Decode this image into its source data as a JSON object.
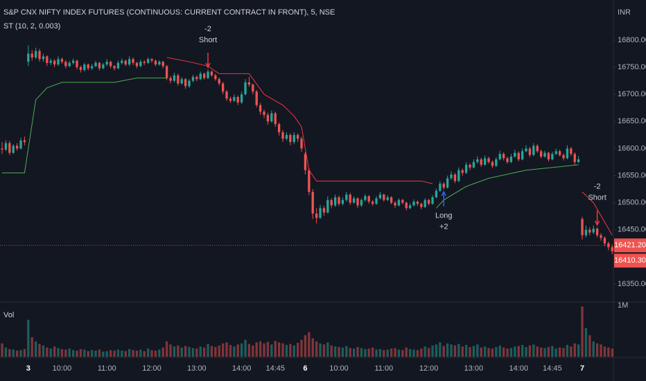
{
  "chart_data": {
    "type": "candlestick",
    "title": "S&P CNX NIFTY INDEX FUTURES (CONTINUOUS: CURRENT CONTRACT IN FRONT), 5, NSE",
    "subtitle": "ST (10, 2, 0.003)",
    "currency": "INR",
    "up_color": "#26a69a",
    "down_color": "#ef5350",
    "xlim": [
      -0.56,
      163.33
    ],
    "ylim": [
      16318,
      16874
    ],
    "yticks": [
      {
        "value": 16350,
        "label": "16350.00"
      },
      {
        "value": 16400,
        "label": "16400.00"
      },
      {
        "value": 16450,
        "label": "16450.00"
      },
      {
        "value": 16500,
        "label": "16500.00"
      },
      {
        "value": 16550,
        "label": "16550.00"
      },
      {
        "value": 16600,
        "label": "16600.00"
      },
      {
        "value": 16650,
        "label": "16650.00"
      },
      {
        "value": 16700,
        "label": "16700.00"
      },
      {
        "value": 16750,
        "label": "16750.00"
      },
      {
        "value": 16800,
        "label": "16800.00"
      }
    ],
    "xticks": [
      {
        "value": 7,
        "label": "3"
      },
      {
        "value": 16,
        "label": "10:00"
      },
      {
        "value": 28,
        "label": "11:00"
      },
      {
        "value": 40,
        "label": "12:00"
      },
      {
        "value": 52,
        "label": "13:00"
      },
      {
        "value": 64,
        "label": "14:00"
      },
      {
        "value": 73,
        "label": "14:45"
      },
      {
        "value": 81,
        "label": "6"
      },
      {
        "value": 90,
        "label": "10:00"
      },
      {
        "value": 102,
        "label": "11:00"
      },
      {
        "value": 114,
        "label": "12:00"
      },
      {
        "value": 126,
        "label": "13:00"
      },
      {
        "value": 138,
        "label": "14:00"
      },
      {
        "value": 147,
        "label": "14:45"
      },
      {
        "value": 155,
        "label": "7"
      }
    ],
    "price_marks": [
      {
        "value": 16421.2,
        "label": "16421.20",
        "color": "#ef5350"
      },
      {
        "value": 16410.3,
        "label": "16410.30",
        "color": "#ef5350"
      }
    ],
    "candles": [
      [
        16600,
        16612,
        16590,
        16598
      ],
      [
        16598,
        16615,
        16595,
        16610
      ],
      [
        16610,
        16614,
        16588,
        16592
      ],
      [
        16592,
        16608,
        16590,
        16605
      ],
      [
        16605,
        16610,
        16596,
        16600
      ],
      [
        16600,
        16620,
        16598,
        16615
      ],
      [
        16615,
        16622,
        16606,
        16612
      ],
      [
        16760,
        16790,
        16752,
        16775
      ],
      [
        16775,
        16782,
        16762,
        16768
      ],
      [
        16768,
        16786,
        16765,
        16780
      ],
      [
        16780,
        16784,
        16760,
        16765
      ],
      [
        16765,
        16775,
        16760,
        16770
      ],
      [
        16770,
        16772,
        16752,
        16758
      ],
      [
        16758,
        16766,
        16754,
        16762
      ],
      [
        16762,
        16765,
        16750,
        16755
      ],
      [
        16755,
        16770,
        16752,
        16765
      ],
      [
        16765,
        16768,
        16756,
        16760
      ],
      [
        16760,
        16763,
        16748,
        16752
      ],
      [
        16752,
        16762,
        16750,
        16758
      ],
      [
        16758,
        16766,
        16755,
        16762
      ],
      [
        16762,
        16764,
        16746,
        16750
      ],
      [
        16750,
        16753,
        16740,
        16745
      ],
      [
        16745,
        16758,
        16742,
        16755
      ],
      [
        16755,
        16757,
        16744,
        16748
      ],
      [
        16748,
        16756,
        16745,
        16752
      ],
      [
        16752,
        16762,
        16750,
        16758
      ],
      [
        16758,
        16760,
        16744,
        16748
      ],
      [
        16748,
        16758,
        16746,
        16755
      ],
      [
        16755,
        16765,
        16752,
        16760
      ],
      [
        16760,
        16762,
        16748,
        16752
      ],
      [
        16752,
        16754,
        16744,
        16748
      ],
      [
        16748,
        16762,
        16746,
        16758
      ],
      [
        16758,
        16766,
        16755,
        16762
      ],
      [
        16762,
        16764,
        16752,
        16755
      ],
      [
        16755,
        16770,
        16752,
        16765
      ],
      [
        16765,
        16768,
        16754,
        16758
      ],
      [
        16758,
        16760,
        16748,
        16752
      ],
      [
        16752,
        16764,
        16750,
        16760
      ],
      [
        16760,
        16763,
        16754,
        16758
      ],
      [
        16758,
        16768,
        16756,
        16765
      ],
      [
        16765,
        16767,
        16758,
        16762
      ],
      [
        16762,
        16764,
        16752,
        16755
      ],
      [
        16755,
        16763,
        16753,
        16760
      ],
      [
        16760,
        16762,
        16748,
        16752
      ],
      [
        16752,
        16754,
        16726,
        16730
      ],
      [
        16730,
        16734,
        16720,
        16725
      ],
      [
        16725,
        16740,
        16722,
        16735
      ],
      [
        16735,
        16738,
        16716,
        16720
      ],
      [
        16720,
        16732,
        16718,
        16728
      ],
      [
        16728,
        16730,
        16710,
        16715
      ],
      [
        16715,
        16728,
        16712,
        16725
      ],
      [
        16725,
        16736,
        16722,
        16732
      ],
      [
        16732,
        16735,
        16724,
        16728
      ],
      [
        16728,
        16742,
        16726,
        16738
      ],
      [
        16738,
        16740,
        16727,
        16730
      ],
      [
        16730,
        16746,
        16728,
        16742
      ],
      [
        16742,
        16744,
        16732,
        16735
      ],
      [
        16735,
        16738,
        16725,
        16728
      ],
      [
        16728,
        16731,
        16716,
        16720
      ],
      [
        16720,
        16723,
        16700,
        16705
      ],
      [
        16705,
        16708,
        16688,
        16692
      ],
      [
        16692,
        16696,
        16684,
        16688
      ],
      [
        16688,
        16700,
        16686,
        16695
      ],
      [
        16695,
        16698,
        16680,
        16685
      ],
      [
        16685,
        16705,
        16682,
        16700
      ],
      [
        16700,
        16728,
        16698,
        16722
      ],
      [
        16722,
        16732,
        16714,
        16718
      ],
      [
        16718,
        16720,
        16700,
        16705
      ],
      [
        16705,
        16708,
        16676,
        16680
      ],
      [
        16680,
        16684,
        16662,
        16668
      ],
      [
        16668,
        16672,
        16656,
        16662
      ],
      [
        16662,
        16666,
        16644,
        16650
      ],
      [
        16650,
        16670,
        16648,
        16665
      ],
      [
        16665,
        16668,
        16640,
        16645
      ],
      [
        16645,
        16648,
        16624,
        16630
      ],
      [
        16630,
        16634,
        16612,
        16618
      ],
      [
        16618,
        16630,
        16615,
        16625
      ],
      [
        16625,
        16628,
        16606,
        16612
      ],
      [
        16612,
        16630,
        16608,
        16625
      ],
      [
        16625,
        16628,
        16612,
        16618
      ],
      [
        16618,
        16622,
        16594,
        16600
      ],
      [
        16590,
        16594,
        16552,
        16560
      ],
      [
        16560,
        16564,
        16514,
        16520
      ],
      [
        16520,
        16525,
        16470,
        16480
      ],
      [
        16480,
        16490,
        16462,
        16472
      ],
      [
        16472,
        16496,
        16470,
        16490
      ],
      [
        16490,
        16494,
        16476,
        16482
      ],
      [
        16482,
        16512,
        16480,
        16505
      ],
      [
        16505,
        16508,
        16490,
        16495
      ],
      [
        16495,
        16515,
        16492,
        16510
      ],
      [
        16510,
        16513,
        16494,
        16498
      ],
      [
        16498,
        16510,
        16495,
        16505
      ],
      [
        16505,
        16520,
        16502,
        16515
      ],
      [
        16515,
        16518,
        16496,
        16500
      ],
      [
        16500,
        16512,
        16498,
        16508
      ],
      [
        16508,
        16510,
        16490,
        16495
      ],
      [
        16495,
        16508,
        16492,
        16505
      ],
      [
        16505,
        16516,
        16502,
        16512
      ],
      [
        16512,
        16514,
        16498,
        16502
      ],
      [
        16502,
        16505,
        16494,
        16498
      ],
      [
        16498,
        16512,
        16496,
        16508
      ],
      [
        16508,
        16520,
        16506,
        16515
      ],
      [
        16515,
        16517,
        16502,
        16505
      ],
      [
        16505,
        16514,
        16503,
        16510
      ],
      [
        16510,
        16512,
        16497,
        16500
      ],
      [
        16500,
        16503,
        16490,
        16495
      ],
      [
        16495,
        16508,
        16493,
        16505
      ],
      [
        16505,
        16507,
        16497,
        16500
      ],
      [
        16500,
        16502,
        16486,
        16490
      ],
      [
        16490,
        16499,
        16488,
        16495
      ],
      [
        16495,
        16506,
        16493,
        16502
      ],
      [
        16502,
        16504,
        16494,
        16498
      ],
      [
        16498,
        16500,
        16488,
        16492
      ],
      [
        16492,
        16508,
        16490,
        16505
      ],
      [
        16505,
        16507,
        16495,
        16498
      ],
      [
        16498,
        16514,
        16496,
        16510
      ],
      [
        16510,
        16526,
        16508,
        16522
      ],
      [
        16522,
        16540,
        16520,
        16535
      ],
      [
        16535,
        16538,
        16524,
        16528
      ],
      [
        16528,
        16550,
        16526,
        16545
      ],
      [
        16545,
        16558,
        16542,
        16552
      ],
      [
        16552,
        16555,
        16536,
        16540
      ],
      [
        16540,
        16565,
        16538,
        16560
      ],
      [
        16560,
        16563,
        16550,
        16555
      ],
      [
        16555,
        16575,
        16553,
        16570
      ],
      [
        16570,
        16573,
        16560,
        16565
      ],
      [
        16565,
        16580,
        16563,
        16575
      ],
      [
        16575,
        16586,
        16572,
        16580
      ],
      [
        16580,
        16583,
        16566,
        16570
      ],
      [
        16570,
        16587,
        16568,
        16582
      ],
      [
        16582,
        16585,
        16572,
        16575
      ],
      [
        16575,
        16578,
        16564,
        16568
      ],
      [
        16568,
        16584,
        16566,
        16580
      ],
      [
        16580,
        16596,
        16578,
        16590
      ],
      [
        16590,
        16593,
        16578,
        16582
      ],
      [
        16582,
        16585,
        16572,
        16575
      ],
      [
        16575,
        16590,
        16573,
        16585
      ],
      [
        16585,
        16598,
        16583,
        16592
      ],
      [
        16592,
        16595,
        16576,
        16580
      ],
      [
        16580,
        16600,
        16578,
        16595
      ],
      [
        16595,
        16606,
        16593,
        16600
      ],
      [
        16600,
        16603,
        16584,
        16588
      ],
      [
        16588,
        16610,
        16586,
        16605
      ],
      [
        16605,
        16608,
        16592,
        16595
      ],
      [
        16595,
        16598,
        16582,
        16585
      ],
      [
        16585,
        16596,
        16583,
        16592
      ],
      [
        16592,
        16594,
        16576,
        16580
      ],
      [
        16580,
        16594,
        16578,
        16590
      ],
      [
        16590,
        16600,
        16588,
        16595
      ],
      [
        16595,
        16598,
        16585,
        16588
      ],
      [
        16588,
        16591,
        16578,
        16582
      ],
      [
        16582,
        16606,
        16580,
        16600
      ],
      [
        16600,
        16603,
        16586,
        16590
      ],
      [
        16590,
        16593,
        16570,
        16575
      ],
      [
        16575,
        16586,
        16573,
        16580
      ],
      [
        16470,
        16474,
        16432,
        16440
      ],
      [
        16440,
        16458,
        16436,
        16450
      ],
      [
        16450,
        16455,
        16440,
        16445
      ],
      [
        16445,
        16458,
        16442,
        16452
      ],
      [
        16452,
        16455,
        16436,
        16440
      ],
      [
        16440,
        16444,
        16430,
        16435
      ],
      [
        16435,
        16438,
        16420,
        16425
      ],
      [
        16425,
        16428,
        16412,
        16418
      ],
      [
        16418,
        16422,
        16405,
        16410.3
      ]
    ],
    "supertrend": [
      {
        "color": "#4caf50",
        "x": [
          0,
          6,
          7,
          9,
          12,
          16,
          30,
          36,
          44
        ],
        "values": [
          16555,
          16555,
          16600,
          16690,
          16712,
          16722,
          16722,
          16730,
          16730
        ]
      },
      {
        "color": "#f23645",
        "x": [
          44,
          50,
          55,
          58,
          66,
          70,
          75,
          78,
          80,
          82,
          84,
          112,
          115
        ],
        "values": [
          16768,
          16760,
          16752,
          16738,
          16738,
          16700,
          16680,
          16660,
          16640,
          16560,
          16540,
          16540,
          16535
        ]
      },
      {
        "color": "#4caf50",
        "x": [
          116,
          118,
          124,
          130,
          140,
          154
        ],
        "values": [
          16490,
          16505,
          16530,
          16545,
          16560,
          16570
        ]
      },
      {
        "color": "#f23645",
        "x": [
          155,
          158,
          163
        ],
        "values": [
          16520,
          16500,
          16440
        ]
      }
    ],
    "signals": [
      {
        "index": 55,
        "direction": "short",
        "labels": [
          "-2",
          "Short"
        ]
      },
      {
        "index": 118,
        "direction": "long",
        "labels": [
          "Long",
          "+2"
        ]
      },
      {
        "index": 159,
        "direction": "short",
        "labels": [
          "-2",
          "Short"
        ]
      }
    ],
    "volume": {
      "title": "Vol",
      "ylim": [
        0,
        1080000
      ],
      "yticks": [
        {
          "value": 1000000,
          "label": "1M"
        }
      ],
      "values": [
        260000,
        180000,
        150000,
        140000,
        120000,
        130000,
        150000,
        720000,
        380000,
        300000,
        250000,
        220000,
        180000,
        160000,
        200000,
        170000,
        150000,
        140000,
        160000,
        130000,
        120000,
        150000,
        140000,
        110000,
        130000,
        120000,
        140000,
        100000,
        110000,
        130000,
        120000,
        140000,
        120000,
        110000,
        150000,
        130000,
        120000,
        140000,
        110000,
        160000,
        130000,
        120000,
        140000,
        180000,
        300000,
        240000,
        200000,
        220000,
        180000,
        210000,
        190000,
        170000,
        160000,
        200000,
        180000,
        250000,
        210000,
        190000,
        220000,
        260000,
        280000,
        230000,
        200000,
        240000,
        260000,
        330000,
        250000,
        220000,
        280000,
        300000,
        260000,
        290000,
        240000,
        310000,
        280000,
        260000,
        230000,
        250000,
        220000,
        270000,
        330000,
        420000,
        480000,
        360000,
        300000,
        260000,
        240000,
        280000,
        220000,
        200000,
        190000,
        180000,
        210000,
        170000,
        160000,
        190000,
        170000,
        150000,
        160000,
        180000,
        140000,
        150000,
        130000,
        140000,
        160000,
        170000,
        140000,
        130000,
        180000,
        150000,
        140000,
        130000,
        160000,
        200000,
        170000,
        220000,
        240000,
        280000,
        210000,
        260000,
        240000,
        220000,
        250000,
        200000,
        230000,
        190000,
        210000,
        240000,
        180000,
        200000,
        170000,
        160000,
        190000,
        220000,
        180000,
        160000,
        170000,
        200000,
        210000,
        230000,
        190000,
        220000,
        240000,
        200000,
        180000,
        170000,
        190000,
        210000,
        160000,
        180000,
        170000,
        230000,
        200000,
        260000,
        240000,
        980000,
        560000,
        420000,
        300000,
        260000,
        240000,
        200000,
        180000,
        160000
      ]
    }
  }
}
